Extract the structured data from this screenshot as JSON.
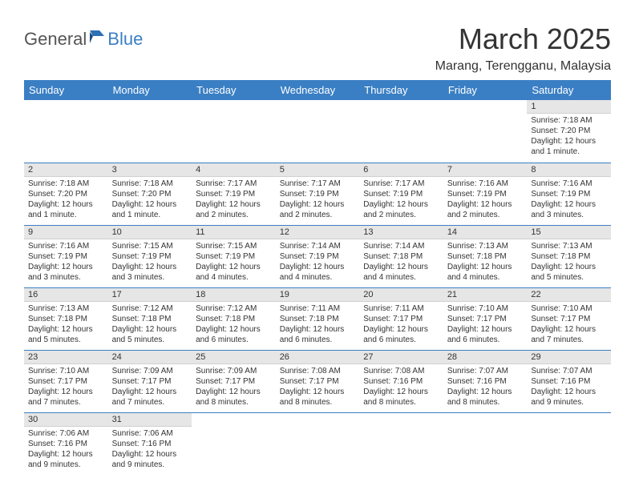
{
  "brand": {
    "part1": "General",
    "part2": "Blue"
  },
  "title": "March 2025",
  "location": "Marang, Terengganu, Malaysia",
  "colors": {
    "header_bg": "#3a7fc4",
    "header_text": "#ffffff",
    "daynum_bg": "#e6e6e6",
    "row_border": "#3a7fc4",
    "text": "#333333",
    "background": "#ffffff"
  },
  "typography": {
    "title_fontsize": 36,
    "location_fontsize": 16,
    "header_fontsize": 13,
    "daynum_fontsize": 11,
    "body_fontsize": 10
  },
  "layout": {
    "columns": 7,
    "rows": 6
  },
  "day_headers": [
    "Sunday",
    "Monday",
    "Tuesday",
    "Wednesday",
    "Thursday",
    "Friday",
    "Saturday"
  ],
  "weeks": [
    [
      null,
      null,
      null,
      null,
      null,
      null,
      {
        "n": "1",
        "sr": "Sunrise: 7:18 AM",
        "ss": "Sunset: 7:20 PM",
        "d1": "Daylight: 12 hours",
        "d2": "and 1 minute."
      }
    ],
    [
      {
        "n": "2",
        "sr": "Sunrise: 7:18 AM",
        "ss": "Sunset: 7:20 PM",
        "d1": "Daylight: 12 hours",
        "d2": "and 1 minute."
      },
      {
        "n": "3",
        "sr": "Sunrise: 7:18 AM",
        "ss": "Sunset: 7:20 PM",
        "d1": "Daylight: 12 hours",
        "d2": "and 1 minute."
      },
      {
        "n": "4",
        "sr": "Sunrise: 7:17 AM",
        "ss": "Sunset: 7:19 PM",
        "d1": "Daylight: 12 hours",
        "d2": "and 2 minutes."
      },
      {
        "n": "5",
        "sr": "Sunrise: 7:17 AM",
        "ss": "Sunset: 7:19 PM",
        "d1": "Daylight: 12 hours",
        "d2": "and 2 minutes."
      },
      {
        "n": "6",
        "sr": "Sunrise: 7:17 AM",
        "ss": "Sunset: 7:19 PM",
        "d1": "Daylight: 12 hours",
        "d2": "and 2 minutes."
      },
      {
        "n": "7",
        "sr": "Sunrise: 7:16 AM",
        "ss": "Sunset: 7:19 PM",
        "d1": "Daylight: 12 hours",
        "d2": "and 2 minutes."
      },
      {
        "n": "8",
        "sr": "Sunrise: 7:16 AM",
        "ss": "Sunset: 7:19 PM",
        "d1": "Daylight: 12 hours",
        "d2": "and 3 minutes."
      }
    ],
    [
      {
        "n": "9",
        "sr": "Sunrise: 7:16 AM",
        "ss": "Sunset: 7:19 PM",
        "d1": "Daylight: 12 hours",
        "d2": "and 3 minutes."
      },
      {
        "n": "10",
        "sr": "Sunrise: 7:15 AM",
        "ss": "Sunset: 7:19 PM",
        "d1": "Daylight: 12 hours",
        "d2": "and 3 minutes."
      },
      {
        "n": "11",
        "sr": "Sunrise: 7:15 AM",
        "ss": "Sunset: 7:19 PM",
        "d1": "Daylight: 12 hours",
        "d2": "and 4 minutes."
      },
      {
        "n": "12",
        "sr": "Sunrise: 7:14 AM",
        "ss": "Sunset: 7:19 PM",
        "d1": "Daylight: 12 hours",
        "d2": "and 4 minutes."
      },
      {
        "n": "13",
        "sr": "Sunrise: 7:14 AM",
        "ss": "Sunset: 7:18 PM",
        "d1": "Daylight: 12 hours",
        "d2": "and 4 minutes."
      },
      {
        "n": "14",
        "sr": "Sunrise: 7:13 AM",
        "ss": "Sunset: 7:18 PM",
        "d1": "Daylight: 12 hours",
        "d2": "and 4 minutes."
      },
      {
        "n": "15",
        "sr": "Sunrise: 7:13 AM",
        "ss": "Sunset: 7:18 PM",
        "d1": "Daylight: 12 hours",
        "d2": "and 5 minutes."
      }
    ],
    [
      {
        "n": "16",
        "sr": "Sunrise: 7:13 AM",
        "ss": "Sunset: 7:18 PM",
        "d1": "Daylight: 12 hours",
        "d2": "and 5 minutes."
      },
      {
        "n": "17",
        "sr": "Sunrise: 7:12 AM",
        "ss": "Sunset: 7:18 PM",
        "d1": "Daylight: 12 hours",
        "d2": "and 5 minutes."
      },
      {
        "n": "18",
        "sr": "Sunrise: 7:12 AM",
        "ss": "Sunset: 7:18 PM",
        "d1": "Daylight: 12 hours",
        "d2": "and 6 minutes."
      },
      {
        "n": "19",
        "sr": "Sunrise: 7:11 AM",
        "ss": "Sunset: 7:18 PM",
        "d1": "Daylight: 12 hours",
        "d2": "and 6 minutes."
      },
      {
        "n": "20",
        "sr": "Sunrise: 7:11 AM",
        "ss": "Sunset: 7:17 PM",
        "d1": "Daylight: 12 hours",
        "d2": "and 6 minutes."
      },
      {
        "n": "21",
        "sr": "Sunrise: 7:10 AM",
        "ss": "Sunset: 7:17 PM",
        "d1": "Daylight: 12 hours",
        "d2": "and 6 minutes."
      },
      {
        "n": "22",
        "sr": "Sunrise: 7:10 AM",
        "ss": "Sunset: 7:17 PM",
        "d1": "Daylight: 12 hours",
        "d2": "and 7 minutes."
      }
    ],
    [
      {
        "n": "23",
        "sr": "Sunrise: 7:10 AM",
        "ss": "Sunset: 7:17 PM",
        "d1": "Daylight: 12 hours",
        "d2": "and 7 minutes."
      },
      {
        "n": "24",
        "sr": "Sunrise: 7:09 AM",
        "ss": "Sunset: 7:17 PM",
        "d1": "Daylight: 12 hours",
        "d2": "and 7 minutes."
      },
      {
        "n": "25",
        "sr": "Sunrise: 7:09 AM",
        "ss": "Sunset: 7:17 PM",
        "d1": "Daylight: 12 hours",
        "d2": "and 8 minutes."
      },
      {
        "n": "26",
        "sr": "Sunrise: 7:08 AM",
        "ss": "Sunset: 7:17 PM",
        "d1": "Daylight: 12 hours",
        "d2": "and 8 minutes."
      },
      {
        "n": "27",
        "sr": "Sunrise: 7:08 AM",
        "ss": "Sunset: 7:16 PM",
        "d1": "Daylight: 12 hours",
        "d2": "and 8 minutes."
      },
      {
        "n": "28",
        "sr": "Sunrise: 7:07 AM",
        "ss": "Sunset: 7:16 PM",
        "d1": "Daylight: 12 hours",
        "d2": "and 8 minutes."
      },
      {
        "n": "29",
        "sr": "Sunrise: 7:07 AM",
        "ss": "Sunset: 7:16 PM",
        "d1": "Daylight: 12 hours",
        "d2": "and 9 minutes."
      }
    ],
    [
      {
        "n": "30",
        "sr": "Sunrise: 7:06 AM",
        "ss": "Sunset: 7:16 PM",
        "d1": "Daylight: 12 hours",
        "d2": "and 9 minutes."
      },
      {
        "n": "31",
        "sr": "Sunrise: 7:06 AM",
        "ss": "Sunset: 7:16 PM",
        "d1": "Daylight: 12 hours",
        "d2": "and 9 minutes."
      },
      null,
      null,
      null,
      null,
      null
    ]
  ]
}
